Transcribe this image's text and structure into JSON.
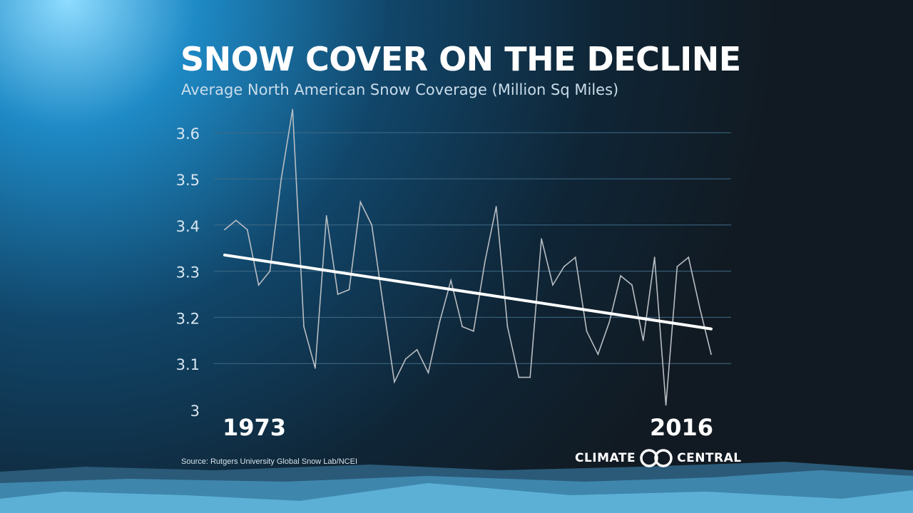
{
  "header": {
    "title": "SNOW COVER ON THE DECLINE",
    "subtitle": "Average North American Snow Coverage (Million Sq Miles)"
  },
  "footer": {
    "source": "Source: Rutgers University Global Snow Lab/NCEI",
    "logo_left": "CLIMATE",
    "logo_right": "CENTRAL"
  },
  "colors": {
    "series_line": "#b8bdc2",
    "trend_line": "#ffffff",
    "tick_text": "#d9e6ef",
    "gridline": "#3f6a86"
  },
  "chart_data": {
    "type": "line",
    "title": "SNOW COVER ON THE DECLINE",
    "subtitle": "Average North American Snow Coverage (Million Sq Miles)",
    "xlabel": "",
    "ylabel": "",
    "ylim": [
      3.0,
      3.65
    ],
    "xlim": [
      1973,
      2016
    ],
    "y_ticks": [
      "3",
      "3.1",
      "3.2",
      "3.3",
      "3.4",
      "3.5",
      "3.6"
    ],
    "x_tick_labels": [
      "1973",
      "2016"
    ],
    "grid": true,
    "legend": "none",
    "x": [
      1973,
      1974,
      1975,
      1976,
      1977,
      1978,
      1979,
      1980,
      1981,
      1982,
      1983,
      1984,
      1985,
      1986,
      1987,
      1988,
      1989,
      1990,
      1991,
      1992,
      1993,
      1994,
      1995,
      1996,
      1997,
      1998,
      1999,
      2000,
      2001,
      2002,
      2003,
      2004,
      2005,
      2006,
      2007,
      2008,
      2009,
      2010,
      2011,
      2012,
      2013,
      2014,
      2015,
      2016
    ],
    "series": [
      {
        "values": [
          3.39,
          3.41,
          3.39,
          3.27,
          3.3,
          3.5,
          3.65,
          3.18,
          3.09,
          3.42,
          3.25,
          3.26,
          3.45,
          3.4,
          3.23,
          3.06,
          3.11,
          3.13,
          3.08,
          3.19,
          3.28,
          3.18,
          3.17,
          3.32,
          3.44,
          3.18,
          3.07,
          3.07,
          3.37,
          3.27,
          3.31,
          3.33,
          3.17,
          3.12,
          3.19,
          3.29,
          3.27,
          3.15,
          3.33,
          3.01,
          3.31,
          3.33,
          3.22,
          3.12
        ]
      }
    ],
    "trend": {
      "start": [
        1973,
        3.335
      ],
      "end": [
        2016,
        3.175
      ]
    }
  }
}
